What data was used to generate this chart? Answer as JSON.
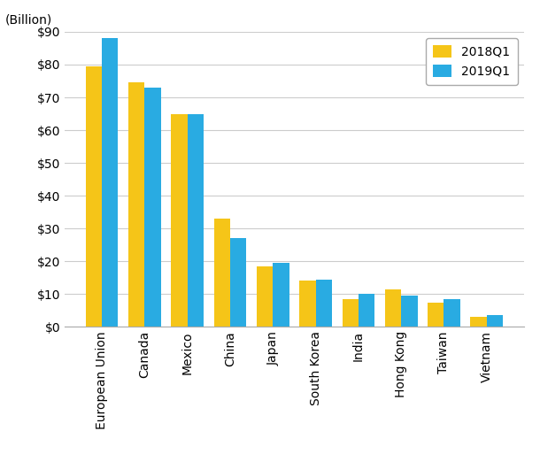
{
  "categories": [
    "European Union",
    "Canada",
    "Mexico",
    "China",
    "Japan",
    "South Korea",
    "India",
    "Hong Kong",
    "Taiwan",
    "Vietnam"
  ],
  "values_2018Q1": [
    79.5,
    74.5,
    65.0,
    33.0,
    18.5,
    14.0,
    8.5,
    11.5,
    7.5,
    3.0
  ],
  "values_2019Q1": [
    88.0,
    73.0,
    65.0,
    27.0,
    19.5,
    14.5,
    10.0,
    9.5,
    8.5,
    3.5
  ],
  "color_2018Q1": "#F5C518",
  "color_2019Q1": "#29ABE2",
  "ylabel_text": "(Billion)",
  "ylim": [
    0,
    90
  ],
  "ytick_step": 10,
  "legend_labels": [
    "2018Q1",
    "2019Q1"
  ],
  "bar_width": 0.38,
  "background_color": "#ffffff",
  "grid_color": "#cccccc",
  "tick_label_fontsize": 10,
  "legend_fontsize": 10
}
